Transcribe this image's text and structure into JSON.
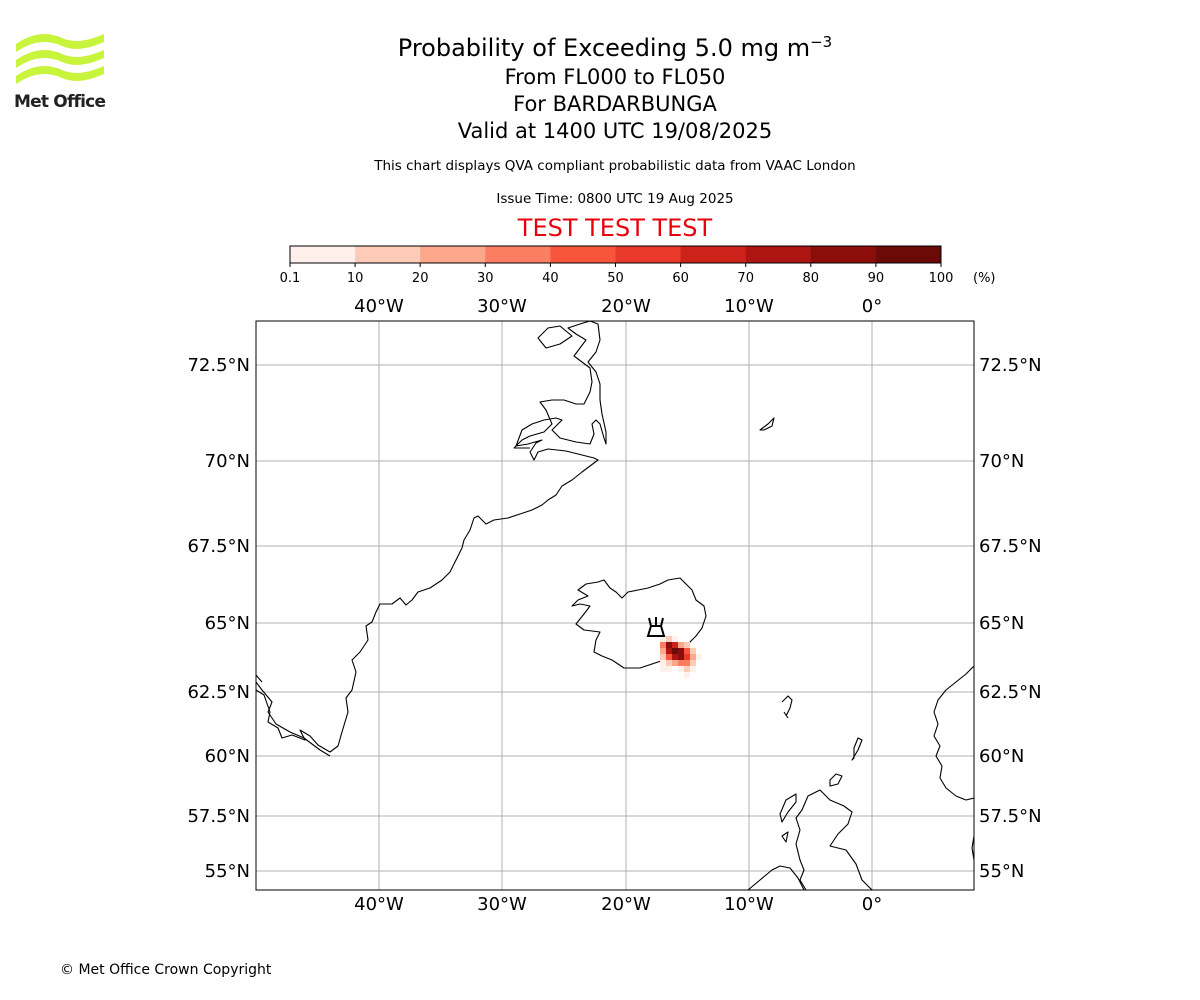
{
  "logo": {
    "name": "Met Office",
    "wave_color": "#c8f53c"
  },
  "title": {
    "main_prefix": "Probability of Exceeding 5.0 mg m",
    "main_sup": "−3",
    "levels": "From FL000 to FL050",
    "volcano": "For BARDARBUNGA",
    "valid": "Valid at 1400 UTC 19/08/2025"
  },
  "description": "This chart displays QVA compliant probabilistic data from VAAC London",
  "issue_time": "Issue Time: 0800 UTC 19 Aug 2025",
  "test_banner": "TEST TEST TEST",
  "colorbar": {
    "ticks": [
      "0.1",
      "10",
      "20",
      "30",
      "40",
      "50",
      "60",
      "70",
      "80",
      "90",
      "100"
    ],
    "unit": "(%)",
    "colors": [
      "#fff0eb",
      "#fdcbb8",
      "#fca68c",
      "#fb7e62",
      "#f7563d",
      "#e8392a",
      "#cc2219",
      "#ad1512",
      "#8c0e0a",
      "#6a0b08"
    ]
  },
  "map": {
    "lon_labels": [
      "40°W",
      "30°W",
      "20°W",
      "10°W",
      "0°"
    ],
    "lat_labels": [
      "72.5°N",
      "70°N",
      "67.5°N",
      "65°N",
      "62.5°N",
      "60°N",
      "57.5°N",
      "55°N"
    ],
    "volcano_icon": "volcano-icon",
    "grid_color": "#b0b0b0"
  },
  "copyright": "© Met Office Crown Copyright"
}
